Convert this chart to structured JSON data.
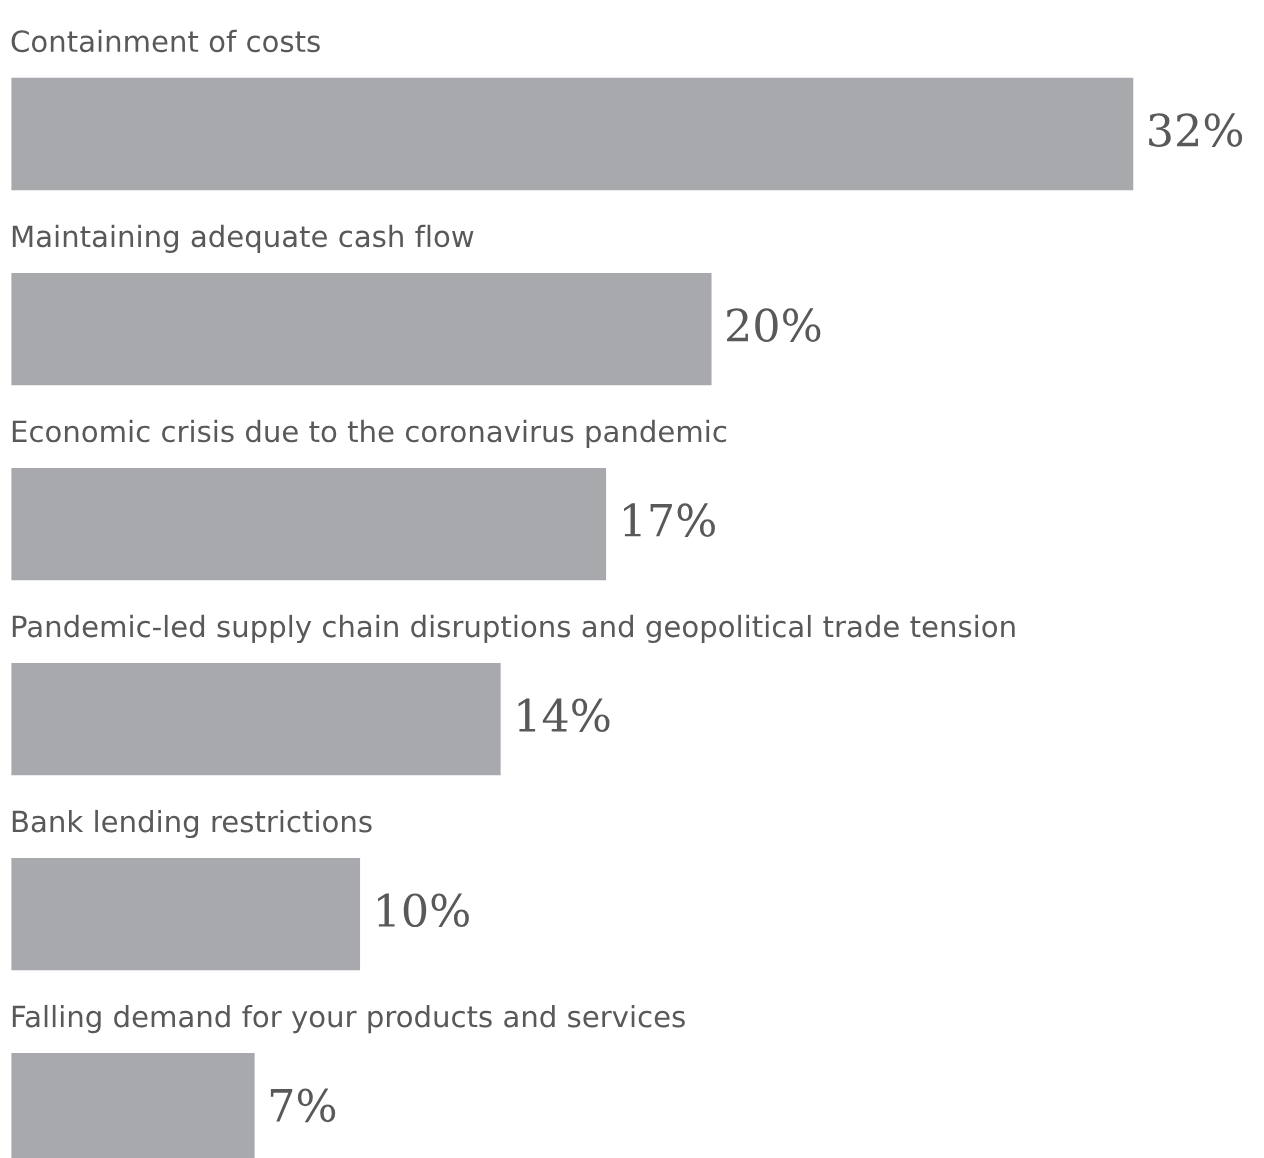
{
  "chart_data": {
    "type": "bar",
    "orientation": "horizontal",
    "categories": [
      "Containment of costs",
      "Maintaining adequate cash flow",
      "Economic crisis due to the coronavirus pandemic",
      "Pandemic-led supply chain disruptions and geopolitical trade tension",
      "Bank lending restrictions",
      "Falling demand for your products and services"
    ],
    "values": [
      32,
      20,
      17,
      14,
      10,
      7
    ],
    "value_labels": [
      "32%",
      "20%",
      "17%",
      "14%",
      "10%",
      "7%"
    ],
    "color": "#a7a9ac"
  }
}
